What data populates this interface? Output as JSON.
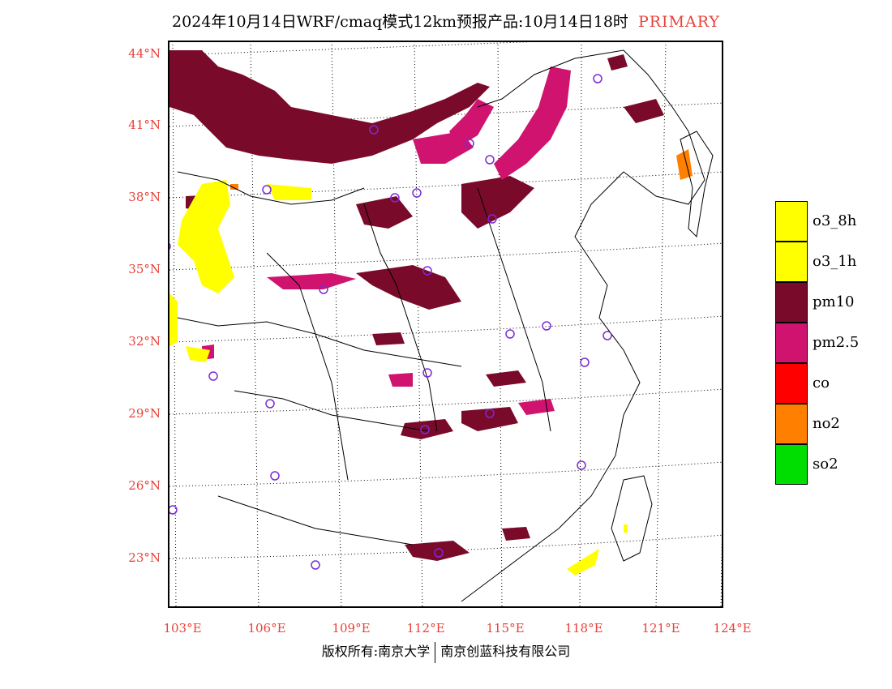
{
  "title": {
    "main": "2024年10月14日WRF/cmaq模式12km预报产品:10月14日18时",
    "tag": "PRIMARY"
  },
  "axes": {
    "lat_labels": [
      "44°N",
      "41°N",
      "38°N",
      "35°N",
      "32°N",
      "29°N",
      "26°N",
      "23°N"
    ],
    "lon_labels": [
      "103°E",
      "106°E",
      "109°E",
      "112°E",
      "115°E",
      "118°E",
      "121°E",
      "124°E"
    ]
  },
  "legend": [
    {
      "label": "o3_8h",
      "color": "#ffff00"
    },
    {
      "label": "o3_1h",
      "color": "#ffff00"
    },
    {
      "label": "pm10",
      "color": "#7a0a2a"
    },
    {
      "label": "pm2.5",
      "color": "#d0136e"
    },
    {
      "label": "co",
      "color": "#ff0000"
    },
    {
      "label": "no2",
      "color": "#ff7f00"
    },
    {
      "label": "so2",
      "color": "#00dd00"
    }
  ],
  "footer": {
    "left": "版权所有:南京大学",
    "right": "南京创蓝科技有限公司"
  }
}
